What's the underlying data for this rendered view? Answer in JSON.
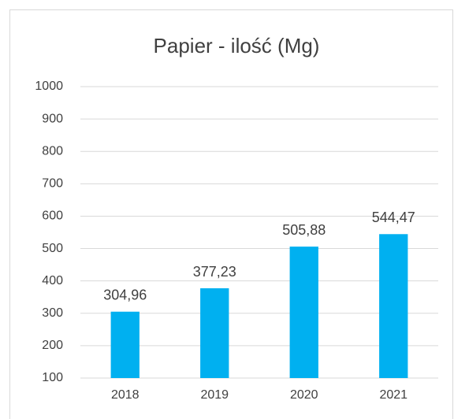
{
  "chart_data": {
    "type": "bar",
    "title": "Papier - ilość (Mg)",
    "categories": [
      "2018",
      "2019",
      "2020",
      "2021"
    ],
    "values": [
      304.96,
      377.23,
      505.88,
      544.47
    ],
    "value_labels": [
      "304,96",
      "377,23",
      "505,88",
      "544,47"
    ],
    "color": "#00b0f0",
    "ylim": [
      100,
      1000
    ],
    "yticks": [
      100,
      200,
      300,
      400,
      500,
      600,
      700,
      800,
      900,
      1000
    ],
    "grid": true
  }
}
